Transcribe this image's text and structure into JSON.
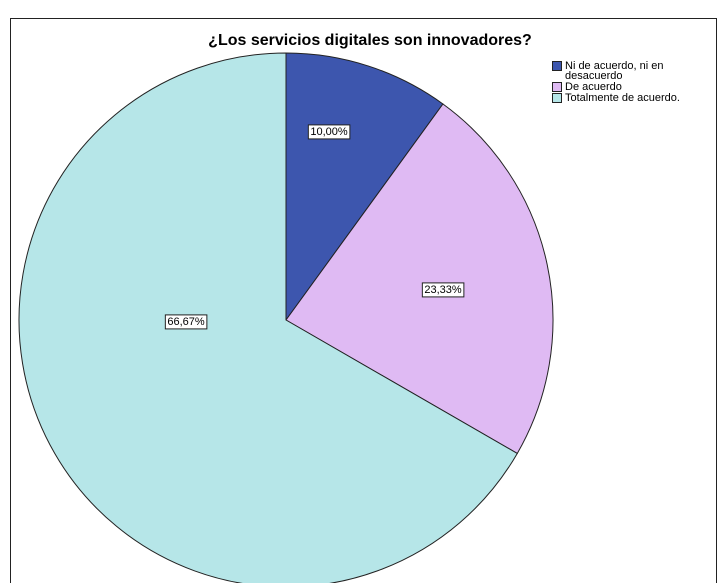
{
  "chart_data": {
    "type": "pie",
    "title": "¿Los servicios digitales son innovadores?",
    "categories": [
      "Ni de acuerdo, ni en desacuerdo",
      "De acuerdo",
      "Totalmente de acuerdo."
    ],
    "values": [
      10,
      23.33,
      66.67
    ],
    "value_labels": [
      "10,00%",
      "23,33%",
      "66,67%"
    ],
    "colors": [
      "#3d56ae",
      "#dfbaf3",
      "#b6e6e8"
    ],
    "legend": "top-right"
  }
}
